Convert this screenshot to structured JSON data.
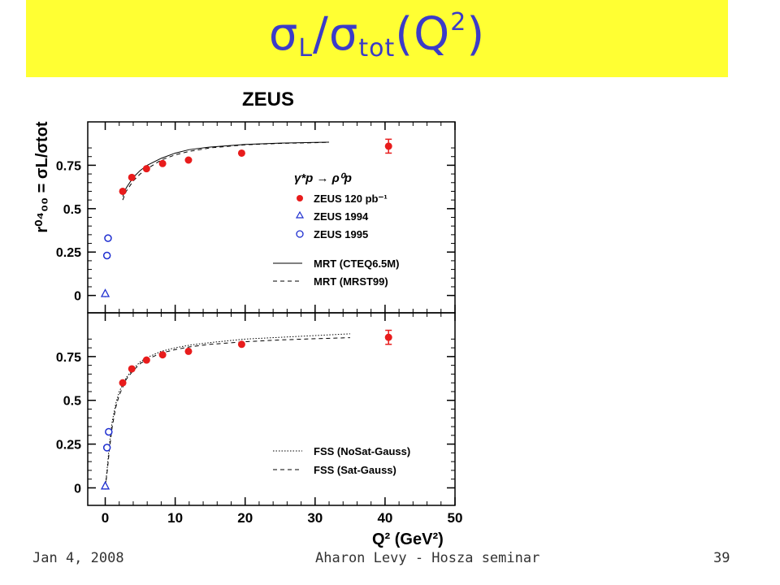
{
  "slide": {
    "title_main": "σ",
    "title_sub1": "L",
    "title_sep": "/σ",
    "title_sub2": "tot",
    "title_paren": "(Q",
    "title_sup": "2",
    "title_close": ")",
    "footer_left": "Jan 4, 2008",
    "footer_center": "Aharon Levy - Hosza seminar",
    "footer_right": "39"
  },
  "colors": {
    "banner": "#ffff33",
    "title": "#3b3bc8",
    "zeus120": "#e81c1c",
    "zeus_old": "#1f2fd0"
  },
  "chart_data": {
    "type": "scatter",
    "experiment_label": "ZEUS",
    "xlabel": "Q² (GeV²)",
    "ylabel": "r⁰⁴₀₀ = σL/σtot",
    "xlim": [
      -2.5,
      50
    ],
    "ylim": [
      -0.1,
      1.0
    ],
    "x_ticks": [
      0,
      10,
      20,
      30,
      40,
      50
    ],
    "y_ticks": [
      0,
      0.25,
      0.5,
      0.75
    ],
    "y_tick_labels": [
      "0",
      "0.25",
      "0.5",
      "0.75"
    ],
    "process_label": "γ*p → ρ⁰p",
    "panels": [
      {
        "series": [
          {
            "name": "ZEUS 120 pb⁻¹",
            "marker": "filled-circle",
            "color": "#e81c1c",
            "x": [
              2.5,
              3.8,
              5.9,
              8.2,
              11.9,
              19.5,
              40.5
            ],
            "y": [
              0.6,
              0.68,
              0.73,
              0.76,
              0.78,
              0.82,
              0.86
            ],
            "err": [
              0.01,
              0.01,
              0.01,
              0.01,
              0.01,
              0.01,
              0.04
            ]
          },
          {
            "name": "ZEUS 1994",
            "marker": "open-triangle",
            "color": "#1f2fd0",
            "x": [
              0.0
            ],
            "y": [
              0.01
            ],
            "err": [
              0.02
            ]
          },
          {
            "name": "ZEUS 1995",
            "marker": "open-circle",
            "color": "#1f2fd0",
            "x": [
              0.25,
              0.4
            ],
            "y": [
              0.23,
              0.33
            ],
            "err": [
              0.02,
              0.02
            ]
          },
          {
            "name": "MRT  (CTEQ6.5M)",
            "style": "solid",
            "x": [
              2.5,
              3,
              4,
              5,
              6,
              8,
              10,
              12,
              15,
              20,
              25,
              30,
              32
            ],
            "y": [
              0.57,
              0.62,
              0.68,
              0.72,
              0.75,
              0.79,
              0.82,
              0.84,
              0.855,
              0.87,
              0.878,
              0.882,
              0.883
            ]
          },
          {
            "name": "MRT (MRST99)",
            "style": "dashed",
            "x": [
              2.5,
              3,
              4,
              5,
              6,
              8,
              10,
              12,
              15,
              20,
              25,
              30,
              32
            ],
            "y": [
              0.55,
              0.6,
              0.66,
              0.7,
              0.73,
              0.78,
              0.81,
              0.83,
              0.85,
              0.868,
              0.876,
              0.88,
              0.882
            ]
          }
        ],
        "legend": [
          "ZEUS 120 pb⁻¹",
          "ZEUS 1994",
          "ZEUS 1995",
          "MRT  (CTEQ6.5M)",
          "MRT (MRST99)"
        ]
      },
      {
        "series": [
          {
            "name": "ZEUS 120 pb⁻¹",
            "marker": "filled-circle",
            "color": "#e81c1c",
            "x": [
              2.5,
              3.8,
              5.9,
              8.2,
              11.9,
              19.5,
              40.5
            ],
            "y": [
              0.6,
              0.68,
              0.73,
              0.76,
              0.78,
              0.82,
              0.86
            ],
            "err": [
              0.01,
              0.01,
              0.01,
              0.01,
              0.01,
              0.01,
              0.04
            ]
          },
          {
            "name": "ZEUS 1994",
            "marker": "open-triangle",
            "color": "#1f2fd0",
            "x": [
              0.0
            ],
            "y": [
              0.01
            ],
            "err": [
              0.02
            ]
          },
          {
            "name": "ZEUS 1995",
            "marker": "open-circle",
            "color": "#1f2fd0",
            "x": [
              0.25,
              0.5
            ],
            "y": [
              0.23,
              0.32
            ],
            "err": [
              0.02,
              0.02
            ]
          },
          {
            "name": "FSS (NoSat-Gauss)",
            "style": "dotted",
            "x": [
              0.0,
              0.3,
              0.6,
              1,
              1.5,
              2,
              3,
              4,
              5,
              6,
              8,
              10,
              12,
              15,
              20,
              25,
              30,
              35
            ],
            "y": [
              0.0,
              0.12,
              0.25,
              0.38,
              0.48,
              0.55,
              0.63,
              0.68,
              0.72,
              0.745,
              0.78,
              0.8,
              0.815,
              0.83,
              0.85,
              0.86,
              0.87,
              0.88
            ]
          },
          {
            "name": "FSS (Sat-Gauss)",
            "style": "dashed",
            "x": [
              0.0,
              0.3,
              0.6,
              1,
              1.5,
              2,
              3,
              4,
              5,
              6,
              8,
              10,
              12,
              15,
              20,
              25,
              30,
              35
            ],
            "y": [
              0.0,
              0.1,
              0.22,
              0.35,
              0.46,
              0.53,
              0.62,
              0.67,
              0.71,
              0.735,
              0.77,
              0.79,
              0.805,
              0.82,
              0.835,
              0.845,
              0.852,
              0.858
            ]
          }
        ],
        "legend": [
          "FSS (NoSat-Gauss)",
          "FSS (Sat-Gauss)"
        ]
      }
    ]
  }
}
